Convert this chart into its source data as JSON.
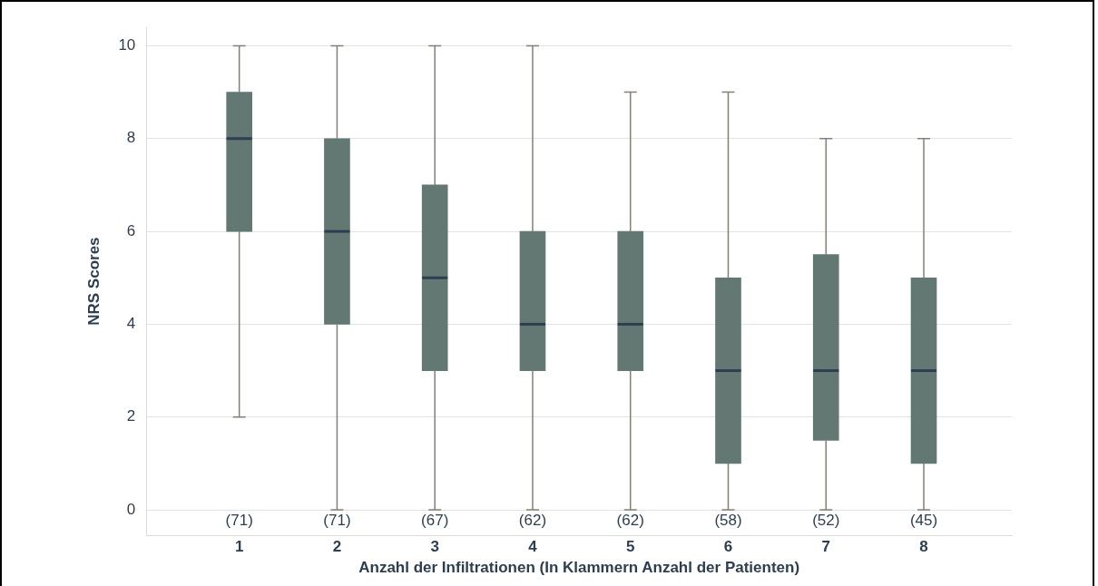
{
  "chart_data": {
    "type": "box",
    "ylabel": "NRS Scores",
    "xlabel": "Anzahl der Infiltrationen (In Klammern Anzahl der Patienten)",
    "categories": [
      "1",
      "2",
      "3",
      "4",
      "5",
      "6",
      "7",
      "8"
    ],
    "color": "#647873",
    "boxes": [
      {
        "low": 2,
        "q1": 6,
        "median": 8,
        "q3": 9,
        "high": 10
      },
      {
        "low": 0,
        "q1": 4,
        "median": 6,
        "q3": 8,
        "high": 10
      },
      {
        "low": 0,
        "q1": 3,
        "median": 5,
        "q3": 7,
        "high": 10
      },
      {
        "low": 0,
        "q1": 3,
        "median": 4,
        "q3": 6,
        "high": 10
      },
      {
        "low": 0,
        "q1": 3,
        "median": 4,
        "q3": 6,
        "high": 9
      },
      {
        "low": 0,
        "q1": 1,
        "median": 3,
        "q3": 5,
        "high": 9
      },
      {
        "low": 0,
        "q1": 1.5,
        "median": 3,
        "q3": 5.5,
        "high": 8
      },
      {
        "low": 0,
        "q1": 1,
        "median": 3,
        "q3": 5,
        "high": 8
      }
    ],
    "annotations": [
      "(71)",
      "(71)",
      "(67)",
      "(62)",
      "(62)",
      "(58)",
      "(52)",
      "(45)"
    ],
    "ylim": [
      -0.55,
      10.4
    ],
    "yticks": [
      0,
      2,
      4,
      6,
      8,
      10
    ],
    "grid": "y",
    "legend": false
  }
}
